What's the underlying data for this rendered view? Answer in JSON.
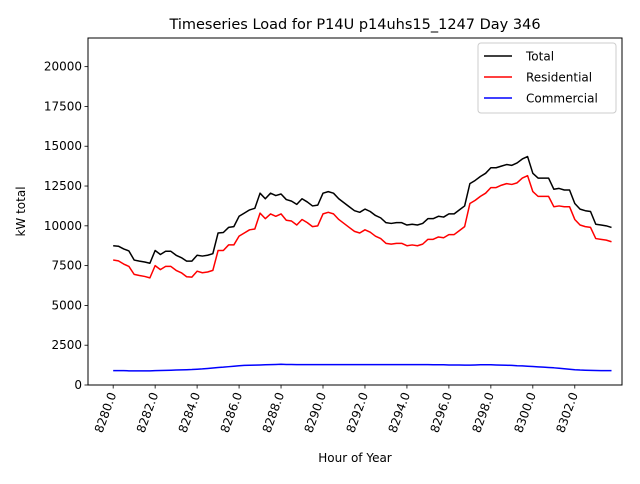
{
  "chart_data": {
    "type": "line",
    "title": "Timeseries Load for P14U p14uhs15_1247  Day 346",
    "xlabel": "Hour of Year",
    "ylabel": "kW total",
    "xlim": [
      8278.8,
      8304.25
    ],
    "ylim": [
      0,
      21800
    ],
    "xticks": [
      8280,
      8282,
      8284,
      8286,
      8288,
      8290,
      8292,
      8294,
      8296,
      8298,
      8300,
      8302
    ],
    "xtick_labels": [
      "8280.0",
      "8282.0",
      "8284.0",
      "8286.0",
      "8288.0",
      "8290.0",
      "8292.0",
      "8294.0",
      "8296.0",
      "8298.0",
      "8300.0",
      "8302.0"
    ],
    "yticks": [
      0,
      2500,
      5000,
      7500,
      10000,
      12500,
      15000,
      17500,
      20000
    ],
    "ytick_labels": [
      "0",
      "2500",
      "5000",
      "7500",
      "10000",
      "12500",
      "15000",
      "17500",
      "20000"
    ],
    "legend_position": "top-right",
    "grid": false,
    "x": [
      8280.0,
      8280.25,
      8280.5,
      8280.75,
      8281.0,
      8281.25,
      8281.5,
      8281.75,
      8282.0,
      8282.25,
      8282.5,
      8282.75,
      8283.0,
      8283.25,
      8283.5,
      8283.75,
      8284.0,
      8284.25,
      8284.5,
      8284.75,
      8285.0,
      8285.25,
      8285.5,
      8285.75,
      8286.0,
      8286.25,
      8286.5,
      8286.75,
      8287.0,
      8287.25,
      8287.5,
      8287.75,
      8288.0,
      8288.25,
      8288.5,
      8288.75,
      8289.0,
      8289.25,
      8289.5,
      8289.75,
      8290.0,
      8290.25,
      8290.5,
      8290.75,
      8291.0,
      8291.25,
      8291.5,
      8291.75,
      8292.0,
      8292.25,
      8292.5,
      8292.75,
      8293.0,
      8293.25,
      8293.5,
      8293.75,
      8294.0,
      8294.25,
      8294.5,
      8294.75,
      8295.0,
      8295.25,
      8295.5,
      8295.75,
      8296.0,
      8296.25,
      8296.5,
      8296.75,
      8297.0,
      8297.25,
      8297.5,
      8297.75,
      8298.0,
      8298.25,
      8298.5,
      8298.75,
      8299.0,
      8299.25,
      8299.5,
      8299.75,
      8300.0,
      8300.25,
      8300.5,
      8300.75,
      8301.0,
      8301.25,
      8301.5,
      8301.75,
      8302.0,
      8302.25,
      8302.5,
      8302.75,
      8303.0,
      8303.25,
      8303.5,
      8303.75
    ],
    "series": [
      {
        "name": "Total",
        "color": "#000000",
        "values": [
          8750,
          8720,
          8550,
          8420,
          7850,
          7780,
          7730,
          7650,
          8450,
          8200,
          8400,
          8400,
          8150,
          8000,
          7780,
          7780,
          8150,
          8100,
          8150,
          8250,
          9550,
          9580,
          9900,
          9950,
          10600,
          10800,
          11000,
          11100,
          12050,
          11700,
          12050,
          11900,
          12000,
          11650,
          11550,
          11350,
          11700,
          11500,
          11250,
          11300,
          12050,
          12150,
          12050,
          11700,
          11450,
          11200,
          10950,
          10850,
          11050,
          10900,
          10650,
          10500,
          10200,
          10150,
          10200,
          10200,
          10050,
          10100,
          10050,
          10150,
          10450,
          10450,
          10600,
          10550,
          10750,
          10750,
          11000,
          11250,
          12650,
          12850,
          13100,
          13300,
          13650,
          13650,
          13750,
          13850,
          13800,
          13950,
          14200,
          14350,
          13300,
          13000,
          13000,
          13000,
          12300,
          12350,
          12250,
          12250,
          11400,
          11050,
          10950,
          10900,
          10100,
          10050,
          10000,
          9900
        ]
      },
      {
        "name": "Residential",
        "color": "#ff0000",
        "values": [
          7850,
          7800,
          7600,
          7450,
          6950,
          6880,
          6820,
          6730,
          7500,
          7250,
          7450,
          7450,
          7200,
          7050,
          6800,
          6780,
          7150,
          7050,
          7100,
          7200,
          8450,
          8450,
          8800,
          8800,
          9350,
          9550,
          9750,
          9800,
          10800,
          10450,
          10750,
          10600,
          10750,
          10350,
          10300,
          10050,
          10400,
          10200,
          9950,
          10000,
          10750,
          10850,
          10750,
          10400,
          10150,
          9900,
          9650,
          9550,
          9750,
          9600,
          9350,
          9200,
          8900,
          8850,
          8900,
          8900,
          8750,
          8800,
          8750,
          8850,
          9150,
          9150,
          9300,
          9250,
          9450,
          9450,
          9700,
          9950,
          11400,
          11600,
          11850,
          12050,
          12400,
          12400,
          12550,
          12650,
          12600,
          12700,
          13000,
          13150,
          12150,
          11850,
          11850,
          11850,
          11200,
          11250,
          11200,
          11200,
          10400,
          10050,
          9950,
          9900,
          9200,
          9150,
          9100,
          9000
        ]
      },
      {
        "name": "Commercial",
        "color": "#0000ff",
        "values": [
          900,
          900,
          900,
          890,
          890,
          890,
          890,
          890,
          900,
          910,
          920,
          930,
          940,
          950,
          960,
          970,
          990,
          1010,
          1040,
          1070,
          1100,
          1120,
          1150,
          1180,
          1210,
          1230,
          1240,
          1250,
          1260,
          1270,
          1280,
          1290,
          1300,
          1290,
          1290,
          1280,
          1280,
          1280,
          1280,
          1280,
          1280,
          1280,
          1280,
          1280,
          1280,
          1280,
          1280,
          1280,
          1280,
          1280,
          1280,
          1280,
          1280,
          1280,
          1280,
          1280,
          1280,
          1280,
          1280,
          1280,
          1280,
          1270,
          1270,
          1270,
          1260,
          1260,
          1260,
          1250,
          1250,
          1260,
          1270,
          1270,
          1270,
          1260,
          1250,
          1240,
          1230,
          1210,
          1200,
          1180,
          1160,
          1140,
          1120,
          1100,
          1080,
          1050,
          1020,
          990,
          960,
          940,
          930,
          920,
          910,
          900,
          900,
          900
        ]
      }
    ]
  }
}
